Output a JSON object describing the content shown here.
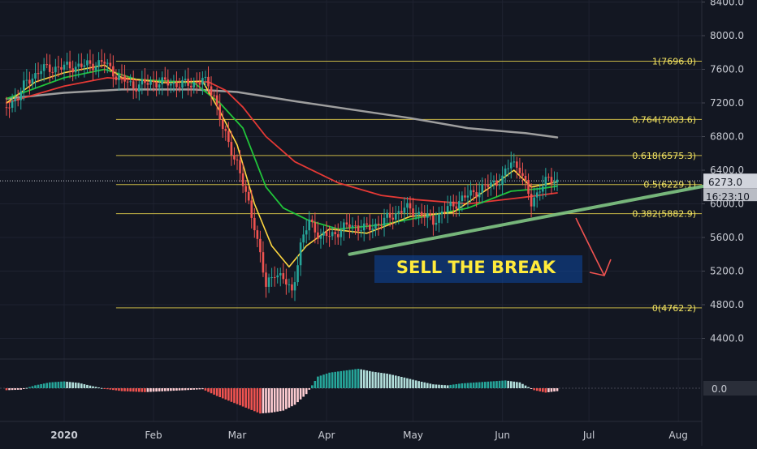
{
  "chart_data": {
    "type": "candlestick",
    "title": "",
    "y_ticks": [
      "8400.0",
      "8000.0",
      "7600.0",
      "7200.0",
      "6800.0",
      "6400.0",
      "6000.0",
      "5600.0",
      "5200.0",
      "4800.0",
      "4400.0"
    ],
    "y_tick_values": [
      8400,
      8000,
      7600,
      7200,
      6800,
      6400,
      6000,
      5600,
      5200,
      4800,
      4400
    ],
    "x_ticks": [
      "2020",
      "Feb",
      "Mar",
      "Apr",
      "May",
      "Jun",
      "Jul",
      "Aug"
    ],
    "x_tick_days": [
      0,
      31,
      60,
      91,
      121,
      152,
      182,
      213
    ],
    "ylim": [
      4200,
      8480
    ],
    "last_price_label": "6273.0",
    "last_price": 6273,
    "countdown_label": "16:23:10",
    "indicator_zero_label": "0.0",
    "annotation_text": "SELL THE BREAK",
    "fib_levels": [
      {
        "label": "1(7696.0)",
        "value": 7696.0
      },
      {
        "label": "0.764(7003.6)",
        "value": 7003.6
      },
      {
        "label": "0.618(6575.3)",
        "value": 6575.3
      },
      {
        "label": "0.5(6229.1)",
        "value": 6229.1
      },
      {
        "label": "0.382(5882.9)",
        "value": 5882.9
      },
      {
        "label": "0(4762.2)",
        "value": 4762.2
      }
    ],
    "price_series": [
      {
        "day": -20,
        "value": 7150
      },
      {
        "day": -16,
        "value": 7280
      },
      {
        "day": -13,
        "value": 7450
      },
      {
        "day": -8,
        "value": 7600
      },
      {
        "day": -2,
        "value": 7620
      },
      {
        "day": 6,
        "value": 7640
      },
      {
        "day": 14,
        "value": 7680
      },
      {
        "day": 18,
        "value": 7530
      },
      {
        "day": 24,
        "value": 7400
      },
      {
        "day": 31,
        "value": 7450
      },
      {
        "day": 38,
        "value": 7430
      },
      {
        "day": 44,
        "value": 7420
      },
      {
        "day": 48,
        "value": 7480
      },
      {
        "day": 52,
        "value": 7300
      },
      {
        "day": 55,
        "value": 6900
      },
      {
        "day": 57,
        "value": 6700
      },
      {
        "day": 60,
        "value": 6500
      },
      {
        "day": 63,
        "value": 6100
      },
      {
        "day": 66,
        "value": 5750
      },
      {
        "day": 68,
        "value": 5400
      },
      {
        "day": 70,
        "value": 5000
      },
      {
        "day": 73,
        "value": 5200
      },
      {
        "day": 76,
        "value": 5100
      },
      {
        "day": 79,
        "value": 4950
      },
      {
        "day": 82,
        "value": 5500
      },
      {
        "day": 85,
        "value": 5800
      },
      {
        "day": 89,
        "value": 5600
      },
      {
        "day": 94,
        "value": 5650
      },
      {
        "day": 99,
        "value": 5750
      },
      {
        "day": 105,
        "value": 5700
      },
      {
        "day": 111,
        "value": 5800
      },
      {
        "day": 118,
        "value": 5950
      },
      {
        "day": 122,
        "value": 5900
      },
      {
        "day": 128,
        "value": 5800
      },
      {
        "day": 133,
        "value": 5950
      },
      {
        "day": 140,
        "value": 6100
      },
      {
        "day": 146,
        "value": 6200
      },
      {
        "day": 152,
        "value": 6300
      },
      {
        "day": 155,
        "value": 6500
      },
      {
        "day": 158,
        "value": 6430
      },
      {
        "day": 162,
        "value": 6000
      },
      {
        "day": 165,
        "value": 6200
      },
      {
        "day": 168,
        "value": 6280
      },
      {
        "day": 171,
        "value": 6273
      }
    ],
    "sma_200": [
      {
        "day": -20,
        "value": 7250
      },
      {
        "day": 0,
        "value": 7320
      },
      {
        "day": 20,
        "value": 7360
      },
      {
        "day": 45,
        "value": 7360
      },
      {
        "day": 60,
        "value": 7330
      },
      {
        "day": 80,
        "value": 7220
      },
      {
        "day": 100,
        "value": 7120
      },
      {
        "day": 120,
        "value": 7020
      },
      {
        "day": 140,
        "value": 6900
      },
      {
        "day": 160,
        "value": 6840
      },
      {
        "day": 171,
        "value": 6790
      }
    ],
    "ema_slow": [
      {
        "day": -20,
        "value": 7200
      },
      {
        "day": 0,
        "value": 7400
      },
      {
        "day": 15,
        "value": 7500
      },
      {
        "day": 30,
        "value": 7460
      },
      {
        "day": 50,
        "value": 7450
      },
      {
        "day": 56,
        "value": 7350
      },
      {
        "day": 62,
        "value": 7150
      },
      {
        "day": 70,
        "value": 6800
      },
      {
        "day": 80,
        "value": 6500
      },
      {
        "day": 95,
        "value": 6250
      },
      {
        "day": 110,
        "value": 6100
      },
      {
        "day": 122,
        "value": 6050
      },
      {
        "day": 140,
        "value": 6000
      },
      {
        "day": 160,
        "value": 6080
      },
      {
        "day": 171,
        "value": 6130
      }
    ],
    "ema_mid": [
      {
        "day": -20,
        "value": 7250
      },
      {
        "day": 0,
        "value": 7500
      },
      {
        "day": 14,
        "value": 7600
      },
      {
        "day": 25,
        "value": 7480
      },
      {
        "day": 45,
        "value": 7440
      },
      {
        "day": 54,
        "value": 7200
      },
      {
        "day": 62,
        "value": 6900
      },
      {
        "day": 70,
        "value": 6200
      },
      {
        "day": 76,
        "value": 5950
      },
      {
        "day": 85,
        "value": 5800
      },
      {
        "day": 95,
        "value": 5700
      },
      {
        "day": 110,
        "value": 5750
      },
      {
        "day": 125,
        "value": 5850
      },
      {
        "day": 140,
        "value": 5950
      },
      {
        "day": 155,
        "value": 6150
      },
      {
        "day": 165,
        "value": 6180
      },
      {
        "day": 171,
        "value": 6210
      }
    ],
    "ema_fast": [
      {
        "day": -20,
        "value": 7200
      },
      {
        "day": -10,
        "value": 7450
      },
      {
        "day": 0,
        "value": 7560
      },
      {
        "day": 14,
        "value": 7650
      },
      {
        "day": 20,
        "value": 7500
      },
      {
        "day": 35,
        "value": 7440
      },
      {
        "day": 48,
        "value": 7460
      },
      {
        "day": 54,
        "value": 7100
      },
      {
        "day": 60,
        "value": 6700
      },
      {
        "day": 66,
        "value": 6000
      },
      {
        "day": 72,
        "value": 5500
      },
      {
        "day": 78,
        "value": 5250
      },
      {
        "day": 84,
        "value": 5500
      },
      {
        "day": 92,
        "value": 5700
      },
      {
        "day": 105,
        "value": 5650
      },
      {
        "day": 120,
        "value": 5850
      },
      {
        "day": 135,
        "value": 5900
      },
      {
        "day": 150,
        "value": 6250
      },
      {
        "day": 156,
        "value": 6400
      },
      {
        "day": 162,
        "value": 6200
      },
      {
        "day": 171,
        "value": 6260
      }
    ],
    "trendline": [
      {
        "day": 99,
        "value": 5400
      },
      {
        "day": 240,
        "value": 6330
      }
    ],
    "histogram": [
      {
        "day": -20,
        "value": -20
      },
      {
        "day": -15,
        "value": -15
      },
      {
        "day": -10,
        "value": 30
      },
      {
        "day": -5,
        "value": 60
      },
      {
        "day": 0,
        "value": 70
      },
      {
        "day": 5,
        "value": 55
      },
      {
        "day": 10,
        "value": 20
      },
      {
        "day": 15,
        "value": -10
      },
      {
        "day": 20,
        "value": -30
      },
      {
        "day": 28,
        "value": -40
      },
      {
        "day": 35,
        "value": -30
      },
      {
        "day": 42,
        "value": -20
      },
      {
        "day": 48,
        "value": -10
      },
      {
        "day": 53,
        "value": -80
      },
      {
        "day": 58,
        "value": -140
      },
      {
        "day": 63,
        "value": -200
      },
      {
        "day": 68,
        "value": -260
      },
      {
        "day": 72,
        "value": -250
      },
      {
        "day": 76,
        "value": -230
      },
      {
        "day": 80,
        "value": -170
      },
      {
        "day": 84,
        "value": -60
      },
      {
        "day": 88,
        "value": 120
      },
      {
        "day": 92,
        "value": 160
      },
      {
        "day": 97,
        "value": 180
      },
      {
        "day": 102,
        "value": 200
      },
      {
        "day": 107,
        "value": 170
      },
      {
        "day": 112,
        "value": 150
      },
      {
        "day": 118,
        "value": 110
      },
      {
        "day": 122,
        "value": 80
      },
      {
        "day": 128,
        "value": 40
      },
      {
        "day": 133,
        "value": 30
      },
      {
        "day": 138,
        "value": 50
      },
      {
        "day": 143,
        "value": 60
      },
      {
        "day": 148,
        "value": 70
      },
      {
        "day": 153,
        "value": 80
      },
      {
        "day": 158,
        "value": 60
      },
      {
        "day": 163,
        "value": -20
      },
      {
        "day": 167,
        "value": -45
      },
      {
        "day": 171,
        "value": -30
      }
    ]
  }
}
